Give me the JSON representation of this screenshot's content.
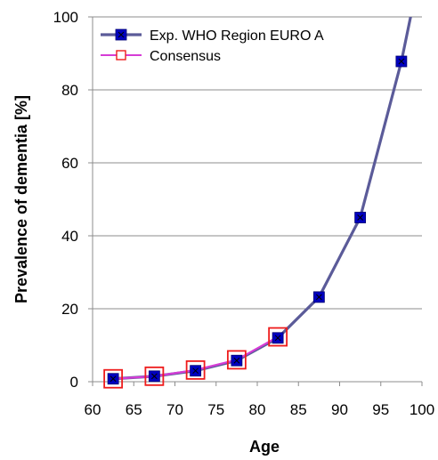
{
  "chart_data": {
    "type": "line",
    "xlabel": "Age",
    "ylabel": "Prevalence of dementia [%]",
    "xlim": [
      60,
      100
    ],
    "ylim": [
      0,
      100
    ],
    "x_ticks": [
      "60",
      "65",
      "70",
      "75",
      "80",
      "85",
      "90",
      "95",
      "100"
    ],
    "y_ticks": [
      "0",
      "20",
      "40",
      "60",
      "80",
      "100"
    ],
    "grid": "horizontal",
    "legend_position": "top-left",
    "series": [
      {
        "name": "Exp.  WHO Region EURO A",
        "color": "#5b5b99",
        "marker": "filled-square",
        "marker_color": "#0000c0",
        "x": [
          62.5,
          67.5,
          72.5,
          77.5,
          82.5,
          87.5,
          92.5,
          97.5,
          98.8
        ],
        "y": [
          0.8,
          1.5,
          3.0,
          5.8,
          12.0,
          23.2,
          45.0,
          87.8,
          102
        ],
        "marker_points": 8
      },
      {
        "name": "Consensus",
        "color": "#d63cd6",
        "marker": "open-square",
        "marker_color": "#ee1c1c",
        "x": [
          62.5,
          67.5,
          72.5,
          77.5,
          82.5
        ],
        "y": [
          0.8,
          1.5,
          3.2,
          6.0,
          12.3
        ]
      }
    ]
  }
}
